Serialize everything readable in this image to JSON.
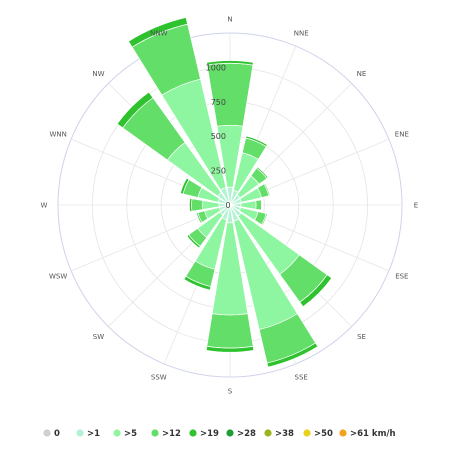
{
  "chart_data": {
    "type": "wind-rose",
    "directions": [
      "N",
      "NNE",
      "NE",
      "ENE",
      "E",
      "ESE",
      "SE",
      "SSE",
      "S",
      "SSW",
      "SW",
      "WSW",
      "W",
      "WNN",
      "NW",
      "NNW"
    ],
    "radial_ticks": [
      "0",
      "250",
      "500",
      "750",
      "1000"
    ],
    "radial_max": 1250,
    "legend": [
      {
        "label": "0",
        "color": "#cfcfcf"
      },
      {
        "label": ">1",
        "color": "#b3f2d2"
      },
      {
        "label": ">5",
        "color": "#8ef5a0"
      },
      {
        "label": ">12",
        "color": "#63de69"
      },
      {
        "label": ">19",
        "color": "#2fc22f"
      },
      {
        "label": ">28",
        "color": "#1e9e35"
      },
      {
        "label": ">38",
        "color": "#98b51c"
      },
      {
        "label": ">50",
        "color": "#e8d21c"
      },
      {
        "label": ">61 km/h",
        "color": "#f2a31b"
      }
    ],
    "series": [
      {
        "name": ">1",
        "color": "#b3f2d2",
        "values": [
          130,
          110,
          90,
          85,
          80,
          80,
          100,
          120,
          130,
          110,
          90,
          80,
          80,
          90,
          110,
          130
        ]
      },
      {
        "name": ">5",
        "color": "#8ef5a0",
        "values": [
          450,
          280,
          170,
          150,
          110,
          130,
          520,
          810,
          670,
          370,
          200,
          110,
          120,
          150,
          450,
          810
        ]
      },
      {
        "name": ">12",
        "color": "#63de69",
        "values": [
          450,
          110,
          70,
          55,
          40,
          60,
          250,
          250,
          240,
          130,
          80,
          50,
          80,
          110,
          400,
          410
        ]
      },
      {
        "name": ">19",
        "color": "#2fc22f",
        "values": [
          20,
          15,
          10,
          8,
          5,
          8,
          40,
          30,
          30,
          25,
          15,
          10,
          15,
          20,
          50,
          50
        ]
      }
    ]
  }
}
